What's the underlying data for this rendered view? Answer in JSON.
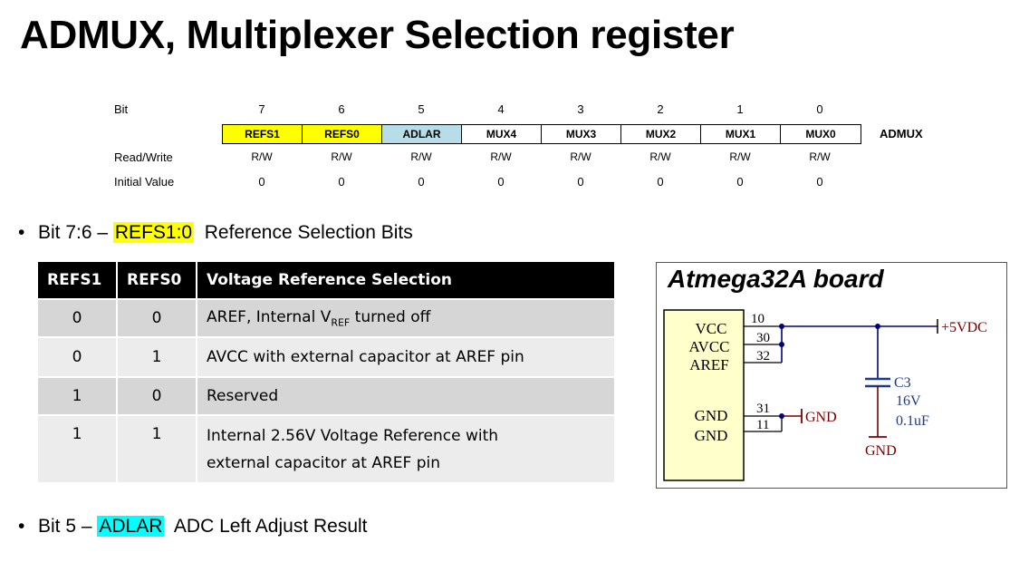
{
  "title": "ADMUX, Multiplexer Selection register",
  "register": {
    "bit_label": "Bit",
    "rw_label": "Read/Write",
    "init_label": "Initial Value",
    "name": "ADMUX",
    "bit_numbers": [
      "7",
      "6",
      "5",
      "4",
      "3",
      "2",
      "1",
      "0"
    ],
    "cells": [
      {
        "label": "REFS1",
        "color": "#ffff00"
      },
      {
        "label": "REFS0",
        "color": "#ffff00"
      },
      {
        "label": "ADLAR",
        "color": "#b7dde8"
      },
      {
        "label": "MUX4",
        "color": "#ffffff"
      },
      {
        "label": "MUX3",
        "color": "#ffffff"
      },
      {
        "label": "MUX2",
        "color": "#ffffff"
      },
      {
        "label": "MUX1",
        "color": "#ffffff"
      },
      {
        "label": "MUX0",
        "color": "#ffffff"
      }
    ],
    "rw": [
      "R/W",
      "R/W",
      "R/W",
      "R/W",
      "R/W",
      "R/W",
      "R/W",
      "R/W"
    ],
    "initial": [
      "0",
      "0",
      "0",
      "0",
      "0",
      "0",
      "0",
      "0"
    ]
  },
  "bullet1": {
    "dot": "•",
    "prefix": "Bit 7:6 – ",
    "highlight": "REFS1:0",
    "text": "Reference Selection Bits"
  },
  "bullet2": {
    "dot": "•",
    "prefix": "Bit 5 – ",
    "highlight": "ADLAR",
    "text": "ADC Left Adjust Result"
  },
  "selection_table": {
    "headers": [
      "REFS1",
      "REFS0",
      "Voltage Reference Selection"
    ],
    "rows": [
      {
        "refs1": "0",
        "refs0": "0",
        "desc_a": "AREF, Internal V",
        "desc_sub": "REF",
        "desc_b": " turned off"
      },
      {
        "refs1": "0",
        "refs0": "1",
        "desc": "AVCC with external capacitor at AREF pin"
      },
      {
        "refs1": "1",
        "refs0": "0",
        "desc": "Reserved"
      },
      {
        "refs1": "1",
        "refs0": "1",
        "desc_line1": "Internal 2.56V Voltage Reference with",
        "desc_line2": "external capacitor at AREF pin"
      }
    ]
  },
  "board": {
    "title": "Atmega32A board",
    "pins": [
      "VCC",
      "AVCC",
      "AREF",
      "GND",
      "GND"
    ],
    "pin_numbers": [
      "10",
      "30",
      "32",
      "31",
      "11"
    ],
    "supply": "+5VDC",
    "gnd": "GND",
    "cap_name": "C3",
    "cap_voltage": "16V",
    "cap_value": "0.1uF"
  },
  "colors": {
    "refs_highlight": "#ffff00",
    "adlar_highlight": "#00ffff",
    "chip_fill": "#ffffcc",
    "wire": "#000080",
    "cap": "#1e3a8a",
    "gnd_wire": "#7a0000"
  }
}
